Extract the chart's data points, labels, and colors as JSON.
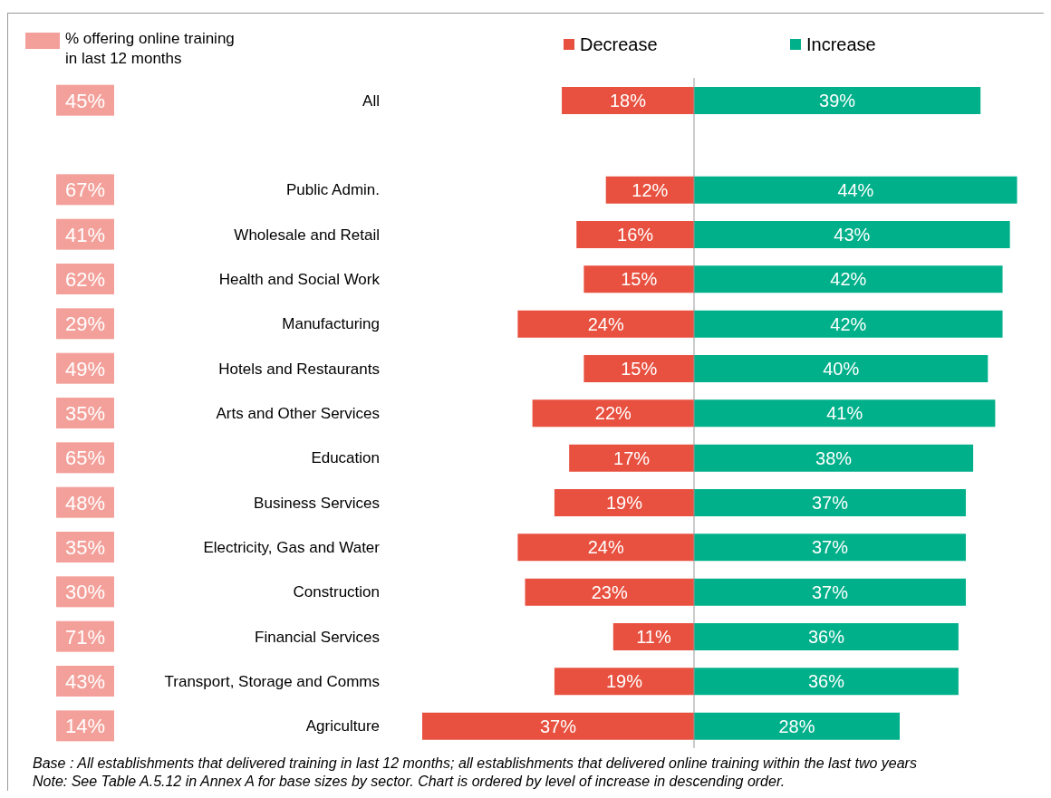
{
  "chart_data": [
    {
      "type": "other",
      "legend": "top",
      "categories": [
        null,
        null,
        null,
        null,
        null,
        null,
        null,
        null,
        null,
        null,
        null,
        null,
        null,
        null,
        null
      ],
      "series": [
        {
          "name": "% offering online training in last 12 months",
          "color": "#f4a09a",
          "values": [
            45,
            null,
            67,
            41,
            62,
            29,
            49,
            35,
            65,
            48,
            35,
            30,
            71,
            43,
            14
          ],
          "value_labels": [
            "45%",
            null,
            "67%",
            "41%",
            "62%",
            "29%",
            "49%",
            "35%",
            "65%",
            "48%",
            "35%",
            "30%",
            "71%",
            "43%",
            "14%"
          ]
        }
      ]
    },
    {
      "type": "bar",
      "orientation": "horizontal",
      "legend": "top",
      "xlim": [
        37,
        0
      ],
      "categories": [
        "All",
        null,
        "Public Admin.",
        "Wholesale and Retail",
        "Health and Social Work",
        "Manufacturing",
        "Hotels and Restaurants",
        "Arts and Other Services",
        "Education",
        "Business Services",
        "Electricity, Gas and Water",
        "Construction",
        "Financial Services",
        "Transport, Storage and Comms",
        "Agriculture"
      ],
      "series": [
        {
          "name": "Decrease",
          "color": "#e8503f",
          "values": [
            18,
            null,
            12,
            16,
            15,
            24,
            15,
            22,
            17,
            19,
            24,
            23,
            11,
            19,
            37
          ],
          "value_labels": [
            "18%",
            null,
            "12%",
            "16%",
            "15%",
            "24%",
            "15%",
            "22%",
            "17%",
            "19%",
            "24%",
            "23%",
            "11%",
            "19%",
            "37%"
          ]
        }
      ]
    },
    {
      "type": "bar",
      "orientation": "horizontal",
      "legend": "top",
      "xlim": [
        0,
        44
      ],
      "tick_labels": false,
      "categories": [
        null,
        null,
        null,
        null,
        null,
        null,
        null,
        null,
        null,
        null,
        null,
        null,
        null,
        null,
        null
      ],
      "series": [
        {
          "name": "Increase",
          "color": "#00b08a",
          "values": [
            39,
            null,
            44,
            43,
            42,
            42,
            40,
            41,
            38,
            37,
            37,
            37,
            36,
            36,
            28
          ],
          "value_labels": [
            "39%",
            null,
            "44%",
            "43%",
            "42%",
            "42%",
            "40%",
            "41%",
            "38%",
            "37%",
            "37%",
            "37%",
            "36%",
            "36%",
            "28%"
          ]
        }
      ],
      "annotations": [
        "Base : All establishments that delivered training in last 12 months; all establishments that delivered online training within the last two years",
        "Note: See Table A.5.12 in Annex A for base sizes by sector. Chart is ordered by level of increase in descending order."
      ]
    }
  ]
}
